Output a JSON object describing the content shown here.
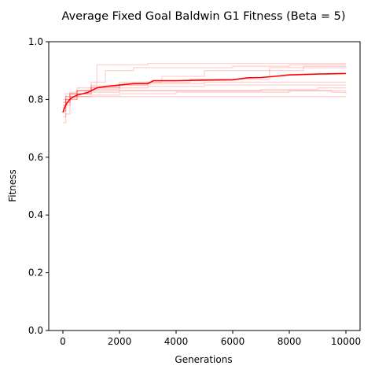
{
  "chart_data": {
    "type": "line",
    "title": "Average Fixed Goal Baldwin G1 Fitness (Beta = 5)",
    "xlabel": "Generations",
    "ylabel": "Fitness",
    "xlim": [
      -500,
      10500
    ],
    "ylim": [
      0.0,
      1.0
    ],
    "xticks": [
      0,
      2000,
      4000,
      6000,
      8000,
      10000
    ],
    "xtick_labels": [
      "0",
      "2000",
      "4000",
      "6000",
      "8000",
      "10000"
    ],
    "yticks": [
      0.0,
      0.2,
      0.4,
      0.6,
      0.8,
      1.0
    ],
    "ytick_labels": [
      "0.0",
      "0.2",
      "0.4",
      "0.6",
      "0.8",
      "1.0"
    ],
    "grid": false,
    "colors": {
      "average": "#ff0000",
      "runs": "#ff0000",
      "axes": "#000000"
    },
    "series": [
      {
        "role": "run",
        "x": [
          0,
          100,
          250,
          500,
          1000,
          1500,
          2500,
          4000,
          6000,
          8000,
          10000
        ],
        "values": [
          0.74,
          0.78,
          0.81,
          0.83,
          0.86,
          0.9,
          0.91,
          0.91,
          0.915,
          0.92,
          0.92
        ]
      },
      {
        "role": "run",
        "x": [
          0,
          100,
          250,
          500,
          1000,
          1200,
          2000,
          3000,
          5000,
          7000,
          9000,
          10000
        ],
        "values": [
          0.76,
          0.8,
          0.82,
          0.84,
          0.85,
          0.92,
          0.92,
          0.925,
          0.925,
          0.925,
          0.925,
          0.925
        ]
      },
      {
        "role": "run",
        "x": [
          0,
          100,
          250,
          500,
          1000,
          2000,
          3500,
          5000,
          7000,
          8500,
          10000
        ],
        "values": [
          0.72,
          0.75,
          0.8,
          0.82,
          0.84,
          0.86,
          0.88,
          0.9,
          0.9,
          0.91,
          0.915
        ]
      },
      {
        "role": "run",
        "x": [
          0,
          100,
          250,
          500,
          1000,
          2000,
          3000,
          4500,
          6000,
          7300,
          8500,
          10000
        ],
        "values": [
          0.78,
          0.81,
          0.82,
          0.83,
          0.84,
          0.85,
          0.86,
          0.87,
          0.87,
          0.91,
          0.915,
          0.915
        ]
      },
      {
        "role": "run",
        "x": [
          0,
          100,
          250,
          500,
          1000,
          2000,
          3000,
          4000,
          5000,
          6500,
          8000,
          10000
        ],
        "values": [
          0.77,
          0.79,
          0.82,
          0.83,
          0.845,
          0.85,
          0.855,
          0.855,
          0.86,
          0.86,
          0.86,
          0.86
        ]
      },
      {
        "role": "run",
        "x": [
          0,
          100,
          250,
          500,
          1000,
          2000,
          3000,
          5000,
          7000,
          8500,
          10000
        ],
        "values": [
          0.8,
          0.82,
          0.825,
          0.83,
          0.835,
          0.84,
          0.845,
          0.85,
          0.85,
          0.85,
          0.85
        ]
      },
      {
        "role": "run",
        "x": [
          0,
          100,
          250,
          500,
          1000,
          2000,
          3000,
          5000,
          7000,
          9000,
          10000
        ],
        "values": [
          0.78,
          0.8,
          0.81,
          0.82,
          0.825,
          0.83,
          0.83,
          0.83,
          0.835,
          0.84,
          0.84
        ]
      },
      {
        "role": "run",
        "x": [
          0,
          100,
          250,
          500,
          1000,
          2000,
          4000,
          6000,
          8000,
          9500,
          10000
        ],
        "values": [
          0.76,
          0.79,
          0.8,
          0.81,
          0.815,
          0.82,
          0.825,
          0.825,
          0.83,
          0.825,
          0.82
        ]
      },
      {
        "role": "run",
        "x": [
          0,
          100,
          250,
          500,
          1000,
          2000,
          4000,
          6000,
          8000,
          10000
        ],
        "values": [
          0.79,
          0.8,
          0.805,
          0.81,
          0.81,
          0.81,
          0.81,
          0.81,
          0.81,
          0.81
        ]
      },
      {
        "role": "run",
        "x": [
          0,
          100,
          250,
          500,
          1000,
          2000,
          3000,
          4000,
          6000,
          8000,
          10000
        ],
        "values": [
          0.79,
          0.81,
          0.82,
          0.82,
          0.83,
          0.83,
          0.83,
          0.83,
          0.83,
          0.83,
          0.83
        ]
      },
      {
        "role": "average",
        "x": [
          0,
          50,
          100,
          200,
          300,
          400,
          500,
          700,
          900,
          1000,
          1200,
          1500,
          2000,
          2500,
          3000,
          3200,
          4000,
          5000,
          6000,
          6500,
          7000,
          7500,
          8000,
          9000,
          10000
        ],
        "values": [
          0.755,
          0.77,
          0.78,
          0.795,
          0.805,
          0.81,
          0.815,
          0.82,
          0.825,
          0.83,
          0.84,
          0.845,
          0.85,
          0.855,
          0.855,
          0.865,
          0.865,
          0.867,
          0.868,
          0.875,
          0.876,
          0.88,
          0.885,
          0.888,
          0.89
        ]
      }
    ]
  }
}
